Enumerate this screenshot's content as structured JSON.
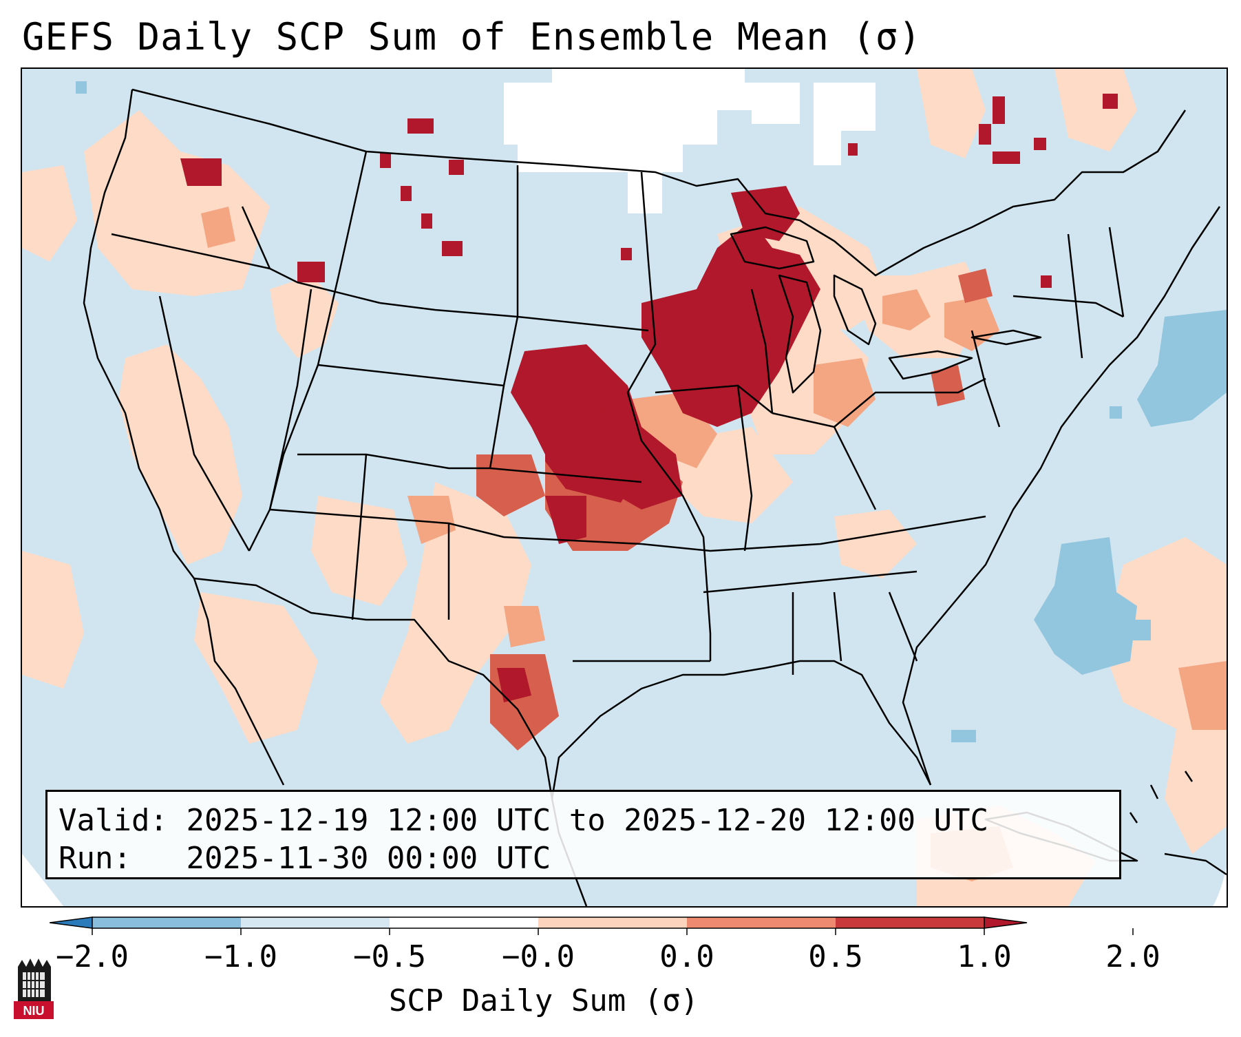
{
  "title": "GEFS Daily SCP Sum of Ensemble Mean (σ)",
  "info": {
    "valid_label": "Valid:",
    "valid_value": "2025-12-19 12:00 UTC to 2025-12-20 12:00 UTC",
    "run_label": "Run:",
    "run_value": "2025-11-30 00:00 UTC"
  },
  "colorbar": {
    "label": "SCP Daily Sum (σ)",
    "ticks": [
      "−2.0",
      "−1.0",
      "−0.5",
      "−0.0",
      "0.0",
      "0.5",
      "1.0",
      "2.0"
    ],
    "colors": [
      "#2b7bba",
      "#89bedc",
      "#d6e7f2",
      "#ffffff",
      "#fcd3bc",
      "#ee8a6f",
      "#c7393a",
      "#b2182b"
    ]
  },
  "palette": {
    "ocean_background": "#d1e5f0",
    "strong_negative": "#92c5de",
    "near_zero": "#ffffff",
    "weak_positive": "#fddbc7",
    "moderate_positive": "#f4a582",
    "high_positive": "#d6604d",
    "max_positive": "#b2182b"
  },
  "logo": {
    "text": "NIU",
    "icon": "university-tower-icon"
  }
}
